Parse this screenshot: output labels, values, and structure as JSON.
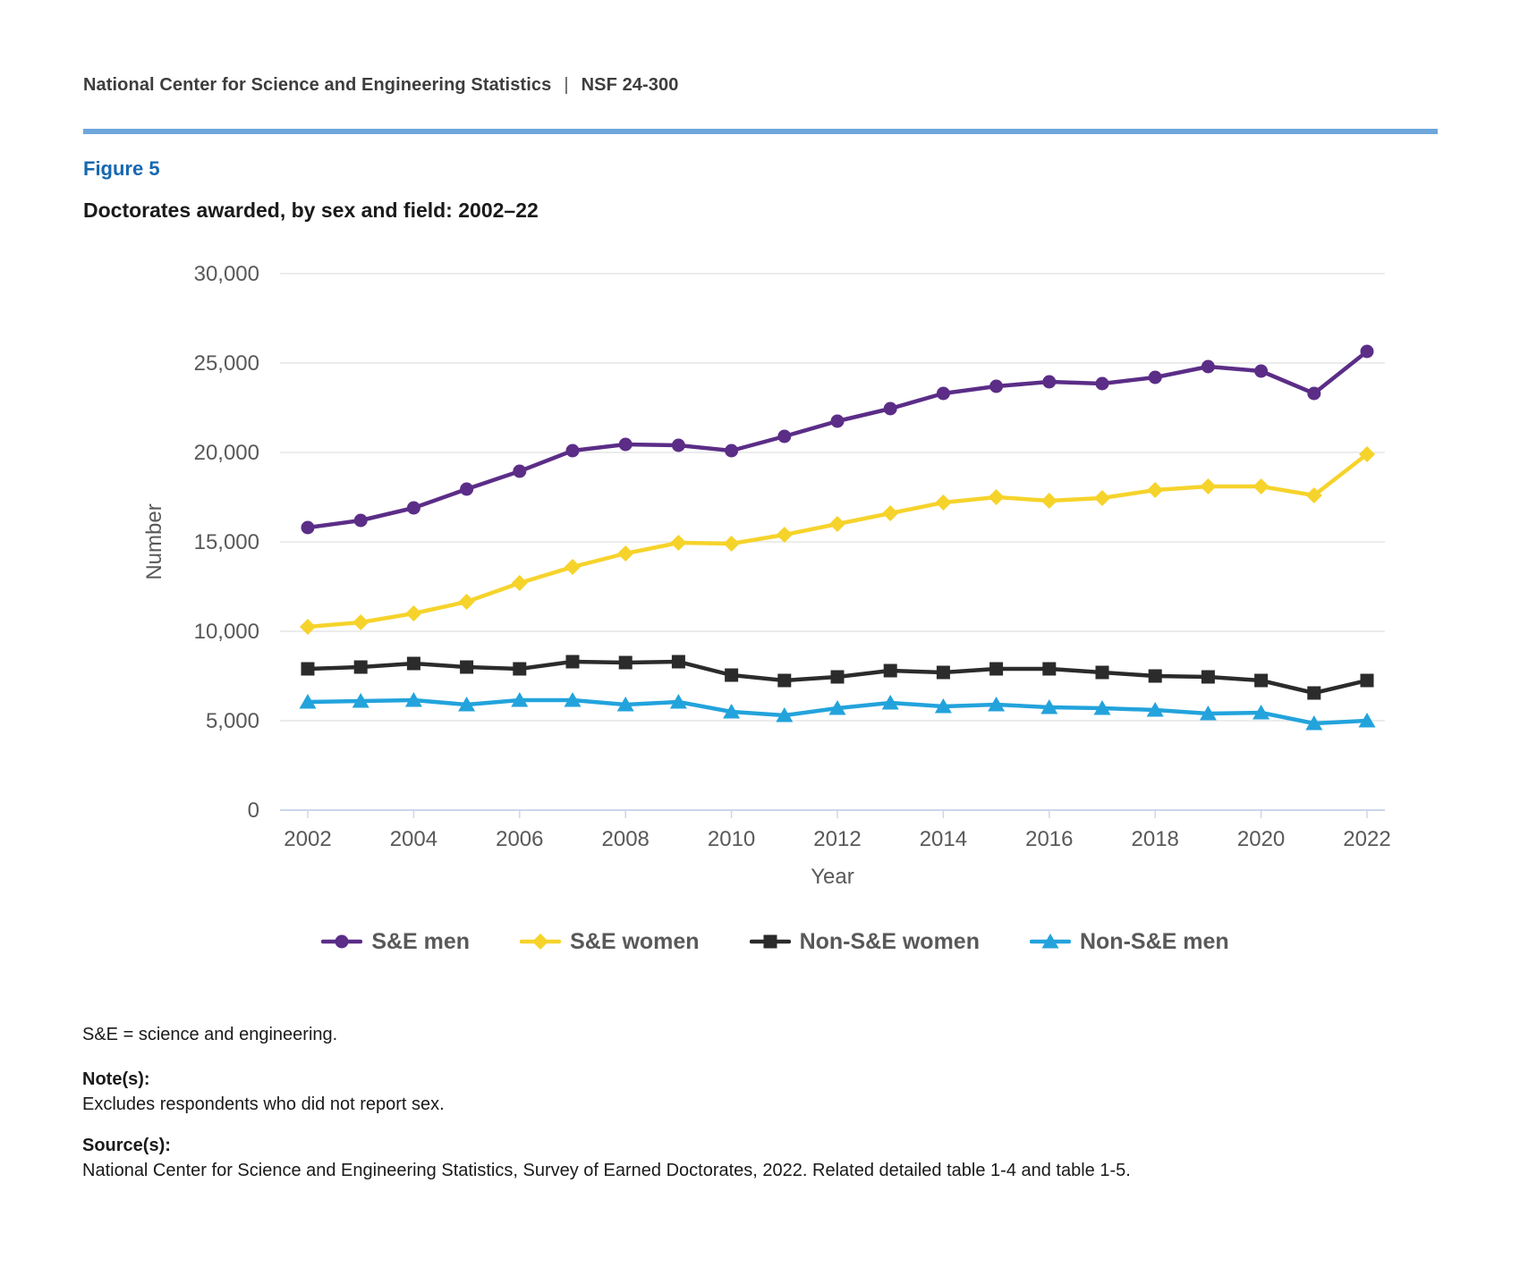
{
  "header": {
    "agency": "National Center for Science and Engineering Statistics",
    "separator": "|",
    "report_id": "NSF 24-300"
  },
  "figure": {
    "label": "Figure 5",
    "title": "Doctorates awarded, by sex and field: 2002–22"
  },
  "chart_data": {
    "type": "line",
    "title": "Doctorates awarded, by sex and field: 2002–22",
    "xlabel": "Year",
    "ylabel": "Number",
    "ylim": [
      0,
      30000
    ],
    "ytick_step": 5000,
    "ytick_labels": [
      "0",
      "5,000",
      "10,000",
      "15,000",
      "20,000",
      "25,000",
      "30,000"
    ],
    "xtick_labels": [
      "2002",
      "2004",
      "2006",
      "2008",
      "2010",
      "2012",
      "2014",
      "2016",
      "2018",
      "2020",
      "2022"
    ],
    "grid": "horizontal",
    "legend_position": "bottom",
    "x": [
      2002,
      2003,
      2004,
      2005,
      2006,
      2007,
      2008,
      2009,
      2010,
      2011,
      2012,
      2013,
      2014,
      2015,
      2016,
      2017,
      2018,
      2019,
      2020,
      2021,
      2022
    ],
    "series": [
      {
        "name": "S&E men",
        "marker": "circle",
        "color": "#5b2d87",
        "values": [
          15800,
          16200,
          16900,
          17950,
          18950,
          20100,
          20450,
          20400,
          20100,
          20900,
          21750,
          22450,
          23300,
          23700,
          23950,
          23850,
          24200,
          24800,
          24550,
          23300,
          25650
        ]
      },
      {
        "name": "S&E women",
        "marker": "diamond",
        "color": "#f6d32b",
        "values": [
          10250,
          10500,
          11000,
          11650,
          12700,
          13600,
          14350,
          14950,
          14900,
          15400,
          16000,
          16600,
          17200,
          17500,
          17300,
          17450,
          17900,
          18100,
          18100,
          17600,
          19900
        ]
      },
      {
        "name": "Non-S&E women",
        "marker": "square",
        "color": "#2b2b2b",
        "values": [
          7900,
          8000,
          8200,
          8000,
          7900,
          8300,
          8250,
          8300,
          7550,
          7250,
          7450,
          7800,
          7700,
          7900,
          7900,
          7700,
          7500,
          7450,
          7250,
          6550,
          7250
        ]
      },
      {
        "name": "Non-S&E men",
        "marker": "triangle",
        "color": "#23a3dc",
        "values": [
          6050,
          6100,
          6150,
          5900,
          6150,
          6150,
          5900,
          6050,
          5500,
          5300,
          5700,
          6000,
          5800,
          5900,
          5750,
          5700,
          5600,
          5400,
          5450,
          4850,
          5000
        ]
      }
    ]
  },
  "footer": {
    "abbreviation": "S&E = science and engineering.",
    "notes_heading": "Note(s):",
    "notes_text": "Excludes respondents who did not report sex.",
    "source_heading": "Source(s):",
    "source_text": "National Center for Science and Engineering Statistics, Survey of Earned Doctorates, 2022. Related detailed table 1-4 and table 1-5."
  },
  "colors": {
    "figure_label": "#1568b1",
    "top_rule": "#6fa7db",
    "gridline": "#e6e6e6",
    "axis_line": "#ccd6eb",
    "tick_text": "#595959",
    "axis_title_text": "#595959",
    "legend_text": "#595959",
    "header_text": "#3d3d3d"
  }
}
